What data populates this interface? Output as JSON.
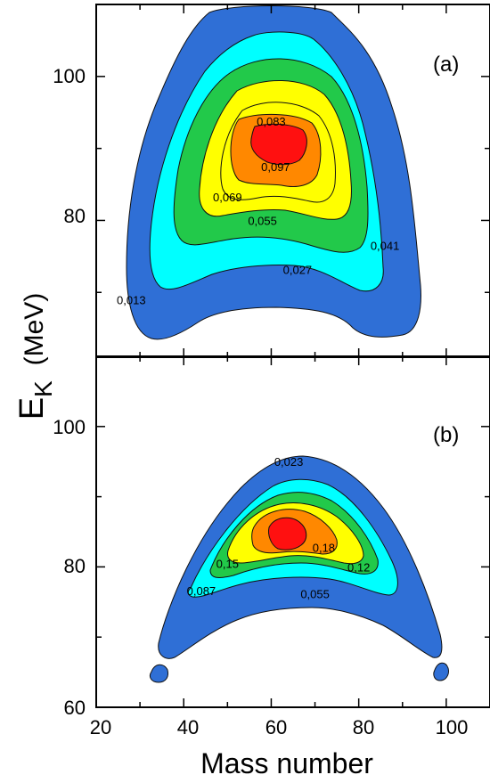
{
  "figure": {
    "x_axis_title": "Mass number",
    "y_axis_title_main": "E",
    "y_axis_title_sub": "K",
    "y_axis_title_unit": "(MeV)"
  },
  "chart_data": [
    {
      "type": "heatmap",
      "panel_label": "(a)",
      "xlim": [
        20,
        110
      ],
      "ylim": [
        61,
        110
      ],
      "x_ticks": [
        20,
        40,
        60,
        80,
        100
      ],
      "y_ticks": [
        80,
        100
      ],
      "y_tick_labels": [
        "80",
        "100"
      ],
      "peak": {
        "x": 61,
        "y": 90
      },
      "contour_levels": [
        0.013,
        0.027,
        0.041,
        0.055,
        0.069,
        0.083,
        0.097
      ],
      "contour_labels": [
        {
          "text": "0,083",
          "x": 60,
          "y": 93.8
        },
        {
          "text": "0,097",
          "x": 61,
          "y": 87.5
        },
        {
          "text": "0,069",
          "x": 50,
          "y": 83.3
        },
        {
          "text": "0,055",
          "x": 58,
          "y": 80
        },
        {
          "text": "0,041",
          "x": 86,
          "y": 76.5
        },
        {
          "text": "0,027",
          "x": 66,
          "y": 73.2
        },
        {
          "text": "0,013",
          "x": 28,
          "y": 69
        }
      ],
      "colors": [
        "#2f6fd6",
        "#00ffff",
        "#22c94a",
        "#ffff00",
        "#ff8800",
        "#ff1010"
      ]
    },
    {
      "type": "heatmap",
      "panel_label": "(b)",
      "xlim": [
        20,
        110
      ],
      "ylim": [
        60,
        110
      ],
      "x_ticks": [
        20,
        40,
        60,
        80,
        100
      ],
      "x_tick_labels": [
        "20",
        "40",
        "60",
        "80",
        "100"
      ],
      "y_ticks": [
        60,
        80,
        100
      ],
      "y_tick_labels": [
        "60",
        "80",
        "100"
      ],
      "peak": {
        "x": 62,
        "y": 84
      },
      "contour_levels": [
        0.023,
        0.055,
        0.087,
        0.12,
        0.15,
        0.18
      ],
      "contour_labels": [
        {
          "text": "0,023",
          "x": 64,
          "y": 95
        },
        {
          "text": "0,18",
          "x": 72,
          "y": 82.8
        },
        {
          "text": "0,15",
          "x": 50,
          "y": 80.5
        },
        {
          "text": "0,12",
          "x": 80,
          "y": 80
        },
        {
          "text": "0,087",
          "x": 44,
          "y": 76.6
        },
        {
          "text": "0,055",
          "x": 70,
          "y": 76.2
        }
      ],
      "colors": [
        "#2f6fd6",
        "#00ffff",
        "#22c94a",
        "#ffff00",
        "#ff8800",
        "#ff1010"
      ]
    }
  ]
}
